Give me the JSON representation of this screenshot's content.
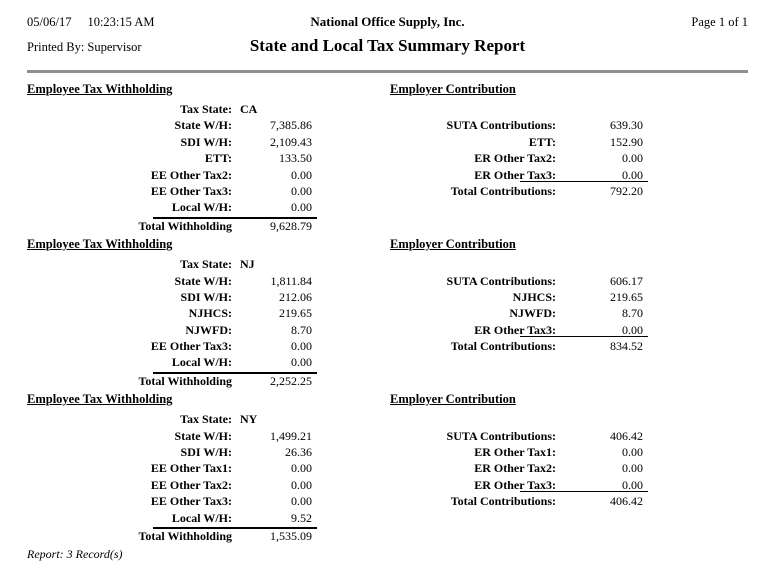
{
  "header": {
    "date": "05/06/17",
    "time": "10:23:15 AM",
    "company": "National Office Supply, Inc.",
    "page_info": "Page 1 of 1",
    "printed_by": "Printed By: Supervisor",
    "title": "State and Local Tax Summary Report"
  },
  "sections": [
    {
      "left_header": "Employee Tax Withholding",
      "right_header": "Employer Contribution",
      "tax_state_label": "Tax State:",
      "tax_state_value": "CA",
      "withholding_rows": [
        {
          "label": "State W/H:",
          "value": "7,385.86"
        },
        {
          "label": "SDI W/H:",
          "value": "2,109.43"
        },
        {
          "label": "ETT:",
          "value": "133.50"
        },
        {
          "label": "EE Other Tax2:",
          "value": "0.00"
        },
        {
          "label": "EE Other Tax3:",
          "value": "0.00"
        },
        {
          "label": "Local W/H:",
          "value": "0.00"
        }
      ],
      "withholding_total_label": "Total Withholding",
      "withholding_total_value": "9,628.79",
      "contribution_rows": [
        {
          "label": "SUTA Contributions:",
          "value": "639.30"
        },
        {
          "label": "ETT:",
          "value": "152.90"
        },
        {
          "label": "ER Other Tax2:",
          "value": "0.00"
        },
        {
          "label": "ER Other Tax3:",
          "value": "0.00"
        }
      ],
      "contribution_total_label": "Total Contributions:",
      "contribution_total_value": "792.20"
    },
    {
      "left_header": "Employee Tax Withholding",
      "right_header": "Employer Contribution",
      "tax_state_label": "Tax State:",
      "tax_state_value": "NJ",
      "withholding_rows": [
        {
          "label": "State W/H:",
          "value": "1,811.84"
        },
        {
          "label": "SDI W/H:",
          "value": "212.06"
        },
        {
          "label": "NJHCS:",
          "value": "219.65"
        },
        {
          "label": "NJWFD:",
          "value": "8.70"
        },
        {
          "label": "EE Other Tax3:",
          "value": "0.00"
        },
        {
          "label": "Local W/H:",
          "value": "0.00"
        }
      ],
      "withholding_total_label": "Total Withholding",
      "withholding_total_value": "2,252.25",
      "contribution_rows": [
        {
          "label": "SUTA Contributions:",
          "value": "606.17"
        },
        {
          "label": "NJHCS:",
          "value": "219.65"
        },
        {
          "label": "NJWFD:",
          "value": "8.70"
        },
        {
          "label": "ER Other Tax3:",
          "value": "0.00"
        }
      ],
      "contribution_total_label": "Total Contributions:",
      "contribution_total_value": "834.52"
    },
    {
      "left_header": "Employee Tax Withholding",
      "right_header": "Employer Contribution",
      "tax_state_label": "Tax State:",
      "tax_state_value": "NY",
      "withholding_rows": [
        {
          "label": "State W/H:",
          "value": "1,499.21"
        },
        {
          "label": "SDI W/H:",
          "value": "26.36"
        },
        {
          "label": "EE Other Tax1:",
          "value": "0.00"
        },
        {
          "label": "EE Other Tax2:",
          "value": "0.00"
        },
        {
          "label": "EE Other Tax3:",
          "value": "0.00"
        },
        {
          "label": "Local W/H:",
          "value": "9.52"
        }
      ],
      "withholding_total_label": "Total Withholding",
      "withholding_total_value": "1,535.09",
      "contribution_rows": [
        {
          "label": "SUTA Contributions:",
          "value": "406.42"
        },
        {
          "label": "ER Other Tax1:",
          "value": "0.00"
        },
        {
          "label": "ER Other Tax2:",
          "value": "0.00"
        },
        {
          "label": "ER Other Tax3:",
          "value": "0.00"
        }
      ],
      "contribution_total_label": "Total Contributions:",
      "contribution_total_value": "406.42"
    }
  ],
  "footer": {
    "record_count": "Report: 3 Record(s)"
  }
}
